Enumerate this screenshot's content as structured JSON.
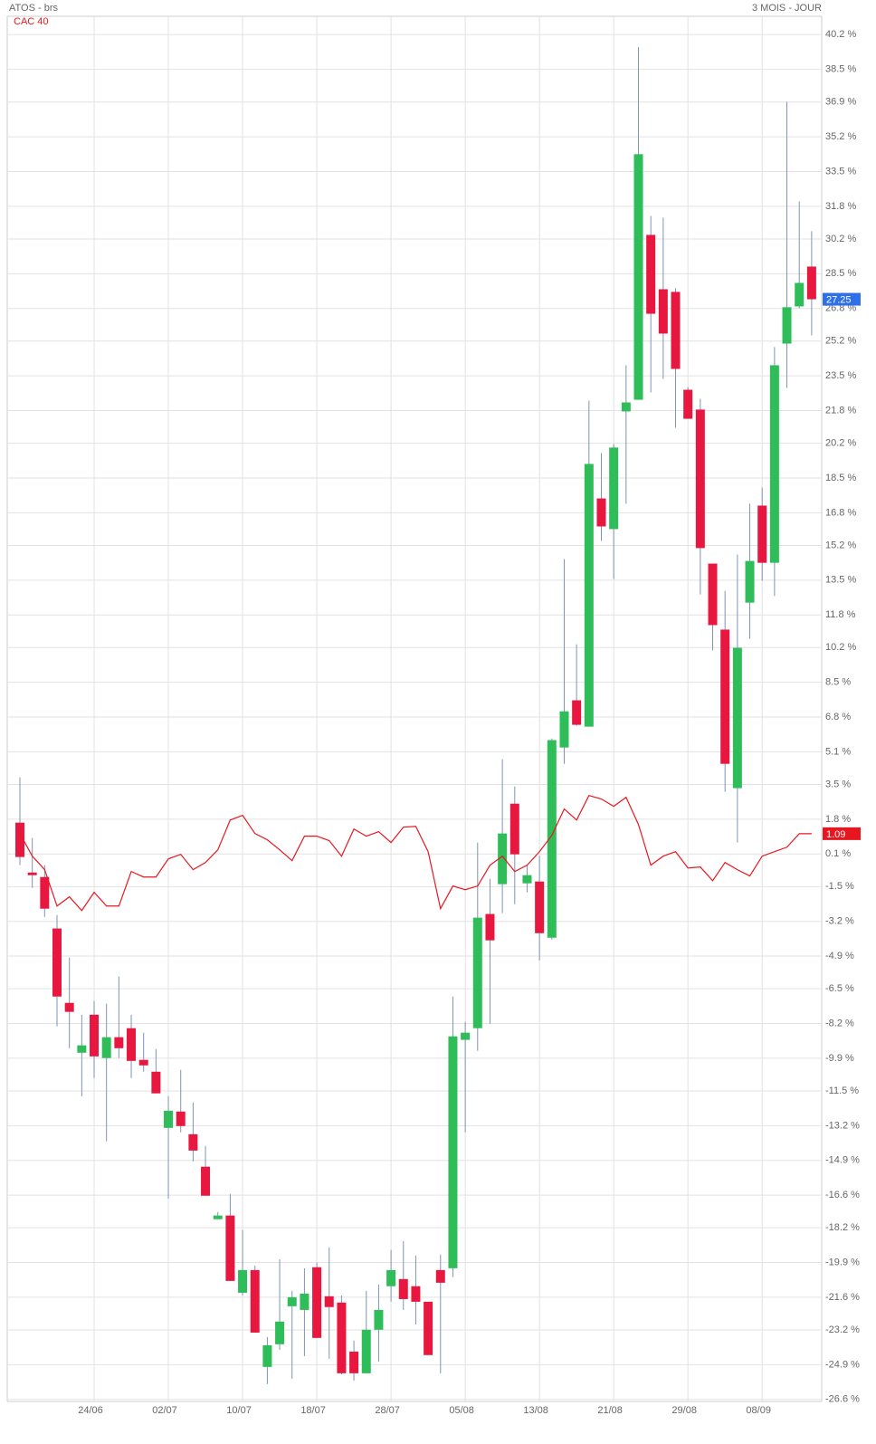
{
  "chart_data": {
    "type": "candlestick",
    "subtitle": "3 MOIS - JOUR",
    "categories": [
      null,
      null,
      null,
      null,
      null,
      null,
      "24/06",
      null,
      null,
      null,
      null,
      null,
      "02/07",
      null,
      null,
      null,
      null,
      null,
      "10/07",
      null,
      null,
      null,
      null,
      null,
      "18/07",
      null,
      null,
      null,
      null,
      null,
      "28/07",
      null,
      null,
      null,
      null,
      null,
      "05/08",
      null,
      null,
      null,
      null,
      null,
      "13/08",
      null,
      null,
      null,
      null,
      null,
      "21/08",
      null,
      null,
      null,
      null,
      null,
      "29/08",
      null,
      null,
      null,
      null,
      null,
      "08/09",
      null,
      null,
      null,
      null
    ],
    "ylim": [
      -26.7,
      41.1
    ],
    "yticks": [
      {
        "value": 40.2,
        "label": "40.2 %"
      },
      {
        "value": 38.5,
        "label": "38.5 %"
      },
      {
        "value": 36.9,
        "label": "36.9 %"
      },
      {
        "value": 35.2,
        "label": "35.2 %"
      },
      {
        "value": 33.5,
        "label": "33.5 %"
      },
      {
        "value": 31.8,
        "label": "31.8 %"
      },
      {
        "value": 30.2,
        "label": "30.2 %"
      },
      {
        "value": 28.5,
        "label": "28.5 %"
      },
      {
        "value": 26.8,
        "label": "26.8 %"
      },
      {
        "value": 25.2,
        "label": "25.2 %"
      },
      {
        "value": 23.5,
        "label": "23.5 %"
      },
      {
        "value": 21.8,
        "label": "21.8 %"
      },
      {
        "value": 20.2,
        "label": "20.2 %"
      },
      {
        "value": 18.5,
        "label": "18.5 %"
      },
      {
        "value": 16.8,
        "label": "16.8 %"
      },
      {
        "value": 15.2,
        "label": "15.2 %"
      },
      {
        "value": 13.5,
        "label": "13.5 %"
      },
      {
        "value": 11.8,
        "label": "11.8 %"
      },
      {
        "value": 10.2,
        "label": "10.2 %"
      },
      {
        "value": 8.5,
        "label": "8.5 %"
      },
      {
        "value": 6.8,
        "label": "6.8 %"
      },
      {
        "value": 5.1,
        "label": "5.1 %"
      },
      {
        "value": 3.5,
        "label": "3.5 %"
      },
      {
        "value": 1.8,
        "label": "1.8 %"
      },
      {
        "value": 0.1,
        "label": "0.1 %"
      },
      {
        "value": -1.5,
        "label": "-1.5 %"
      },
      {
        "value": -3.2,
        "label": "-3.2 %"
      },
      {
        "value": -4.9,
        "label": "-4.9 %"
      },
      {
        "value": -6.5,
        "label": "-6.5 %"
      },
      {
        "value": -8.2,
        "label": "-8.2 %"
      },
      {
        "value": -9.9,
        "label": "-9.9 %"
      },
      {
        "value": -11.5,
        "label": "-11.5 %"
      },
      {
        "value": -13.2,
        "label": "-13.2 %"
      },
      {
        "value": -14.9,
        "label": "-14.9 %"
      },
      {
        "value": -16.6,
        "label": "-16.6 %"
      },
      {
        "value": -18.2,
        "label": "-18.2 %"
      },
      {
        "value": -19.9,
        "label": "-19.9 %"
      },
      {
        "value": -21.6,
        "label": "-21.6 %"
      },
      {
        "value": -23.2,
        "label": "-23.2 %"
      },
      {
        "value": -24.9,
        "label": "-24.9 %"
      },
      {
        "value": -26.6,
        "label": "-26.6 %"
      }
    ],
    "grid": true,
    "series": [
      {
        "name": "ATOS - brs",
        "type": "candlestick",
        "up_color": "#2ebd59",
        "down_color": "#e8173f",
        "wick_color": "#7f93b5",
        "last_color": "#2f6fe8",
        "open": [
          1.63,
          -0.81,
          -1.03,
          -3.55,
          -7.19,
          -9.63,
          -7.77,
          -9.89,
          -8.87,
          -8.43,
          -9.98,
          -10.56,
          -13.31,
          -12.51,
          -13.62,
          -15.21,
          -17.78,
          -17.6,
          -21.38,
          -20.27,
          -25.01,
          -23.9,
          -22.04,
          -22.22,
          -20.13,
          -21.55,
          -21.86,
          -24.26,
          -25.32,
          -23.19,
          -21.06,
          -20.71,
          -21.06,
          -21.82,
          -20.27,
          -20.18,
          -9.0,
          -8.43,
          -2.84,
          -1.38,
          2.56,
          -1.34,
          -1.25,
          -4.0,
          5.31,
          7.62,
          6.33,
          17.5,
          16.0,
          21.76,
          22.33,
          30.4,
          27.74,
          27.61,
          22.82,
          21.85,
          14.31,
          11.08,
          3.32,
          12.4,
          17.15,
          14.35,
          25.08,
          26.9,
          28.85
        ],
        "high": [
          3.85,
          0.88,
          -0.45,
          -2.89,
          -4.97,
          -7.77,
          -7.1,
          -7.23,
          -5.9,
          -7.77,
          -8.65,
          -9.45,
          -11.76,
          -10.47,
          -12.07,
          -14.19,
          -17.43,
          -16.54,
          -18.31,
          -20.05,
          -23.55,
          -19.74,
          -21.29,
          -20.18,
          -19.91,
          -19.16,
          -21.51,
          -23.72,
          -21.29,
          -20.98,
          -19.29,
          -18.85,
          -19.56,
          -21.82,
          -19.51,
          -6.88,
          -8.12,
          0.66,
          -1.12,
          4.74,
          3.4,
          -0.45,
          0.01,
          5.75,
          14.53,
          10.36,
          22.29,
          19.72,
          20.16,
          24.02,
          39.59,
          31.33,
          31.24,
          27.79,
          22.95,
          22.38,
          14.31,
          12.98,
          14.75,
          17.24,
          18.03,
          24.91,
          36.92,
          32.04,
          30.58
        ],
        "low": [
          -0.45,
          -1.56,
          -2.98,
          -8.34,
          -9.41,
          -11.76,
          -10.87,
          -13.97,
          -9.89,
          -10.87,
          -10.56,
          -11.62,
          -16.77,
          -13.53,
          -14.95,
          -16.63,
          -17.78,
          -20.8,
          -21.51,
          -23.33,
          -25.85,
          -24.17,
          -25.59,
          -24.48,
          -23.59,
          -24.61,
          -25.37,
          -25.68,
          -25.32,
          -24.75,
          -21.82,
          -22.22,
          -22.93,
          -24.43,
          -25.32,
          -20.62,
          -13.53,
          -9.54,
          -8.21,
          -2.8,
          -2.36,
          -1.78,
          -5.11,
          -4.09,
          4.51,
          6.37,
          6.33,
          15.42,
          13.56,
          17.24,
          22.33,
          22.69,
          23.35,
          20.96,
          21.4,
          12.8,
          10.06,
          3.14,
          0.66,
          10.63,
          13.47,
          12.72,
          22.91,
          26.81,
          25.48
        ],
        "close": [
          -0.05,
          -0.94,
          -2.58,
          -6.88,
          -7.63,
          -9.27,
          -9.81,
          -8.87,
          -9.41,
          -10.03,
          -10.25,
          -11.62,
          -12.47,
          -13.22,
          -14.42,
          -16.63,
          -17.6,
          -20.8,
          -20.27,
          -23.33,
          -23.95,
          -22.79,
          -21.6,
          -21.42,
          -23.59,
          -22.08,
          -25.32,
          -25.32,
          -23.19,
          -22.22,
          -20.27,
          -21.69,
          -21.82,
          -24.43,
          -20.89,
          -8.83,
          -8.65,
          -3.02,
          -4.13,
          1.1,
          0.08,
          -0.94,
          -3.78,
          5.67,
          7.08,
          6.42,
          19.19,
          16.13,
          19.99,
          22.2,
          34.35,
          26.54,
          25.57,
          23.84,
          21.4,
          15.07,
          11.3,
          4.51,
          10.19,
          14.44,
          14.35,
          24.02,
          26.86,
          28.05,
          27.25
        ]
      },
      {
        "name": "CAC 40",
        "type": "line",
        "color": "#e8171f",
        "values": [
          1.1,
          -0.01,
          -0.67,
          -2.45,
          -2.0,
          -2.67,
          -1.78,
          -2.45,
          -2.45,
          -0.76,
          -1.03,
          -1.03,
          -0.14,
          0.08,
          -0.67,
          -0.32,
          0.3,
          1.76,
          1.99,
          1.1,
          0.79,
          0.3,
          -0.23,
          0.97,
          0.97,
          0.75,
          -0.01,
          1.32,
          0.97,
          1.19,
          0.66,
          1.41,
          1.45,
          0.21,
          -2.58,
          -1.47,
          -1.65,
          -1.47,
          -0.45,
          -0.01,
          -0.76,
          -0.45,
          0.21,
          1.01,
          2.3,
          1.76,
          2.96,
          2.79,
          2.43,
          2.87,
          1.54,
          -0.45,
          -0.01,
          0.21,
          -0.59,
          -0.54,
          -1.21,
          -0.32,
          -0.67,
          -0.98,
          -0.01,
          0.21,
          0.43,
          1.09,
          1.09
        ]
      }
    ]
  }
}
